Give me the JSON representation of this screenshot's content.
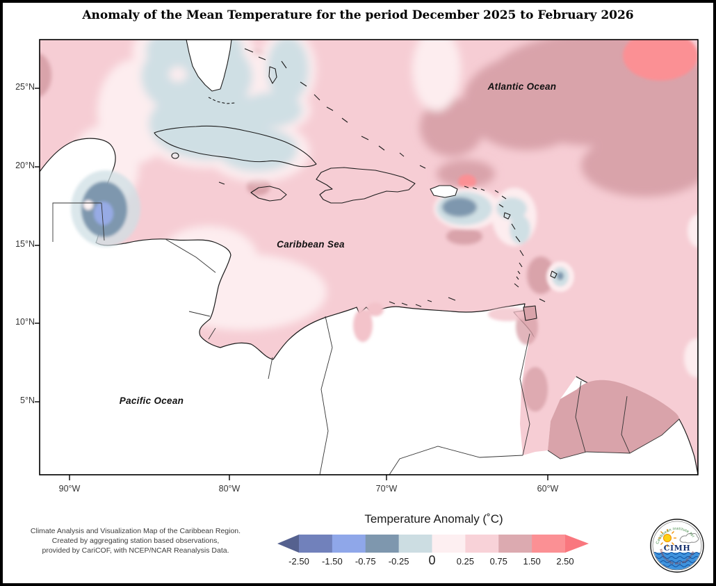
{
  "title": "Anomaly of the Mean Temperature for the period December 2025 to February 2026",
  "map": {
    "ocean_labels": {
      "atlantic": "Atlantic Ocean",
      "caribbean": "Caribbean Sea",
      "pacific": "Pacific Ocean"
    },
    "lat_ticks": [
      "25°N",
      "20°N",
      "15°N",
      "10°N",
      "5°N"
    ],
    "lon_ticks": [
      "90°W",
      "80°W",
      "70°W",
      "60°W"
    ]
  },
  "attribution": {
    "line1": "Climate Analysis and Visualization Map of the Caribbean Region.",
    "line2": "Created by aggregating station based observations,",
    "line3": "provided by CariCOF, with NCEP/NCAR Reanalysis Data."
  },
  "legend": {
    "title": "Temperature Anomaly (˚C)",
    "tick_labels": [
      "-2.50",
      "-1.50",
      "-0.75",
      "-0.25",
      "0",
      "0.25",
      "0.75",
      "1.50",
      "2.50"
    ],
    "segment_colors": [
      "#55618f",
      "#7181bb",
      "#8fa7e9",
      "#7e97ae",
      "#ccdde2",
      "#fdeff1",
      "#f8d2d8",
      "#dcaab0",
      "#fb9094",
      "#f9777e"
    ],
    "class_edges": [
      -2.5,
      -1.5,
      -0.75,
      -0.25,
      0,
      0.25,
      0.75,
      1.5,
      2.5
    ]
  },
  "logo": {
    "acronym": "CIMH",
    "arc_top": "Caribbean Institute for",
    "arc_bottom": "Meteorology and Hydrology"
  },
  "palette": {
    "sea_base_pink": "#f6cdd4",
    "pale_pink": "#fdedef",
    "light_blue": "#cfdfe4",
    "gray_blue": "#7e97ae",
    "periwinkle_blue": "#97abe5",
    "dusty_pink": "#d9a3aa",
    "salmon_red": "#fb9094",
    "land_white": "#ffffff",
    "coast_line": "#1a1a1a"
  }
}
